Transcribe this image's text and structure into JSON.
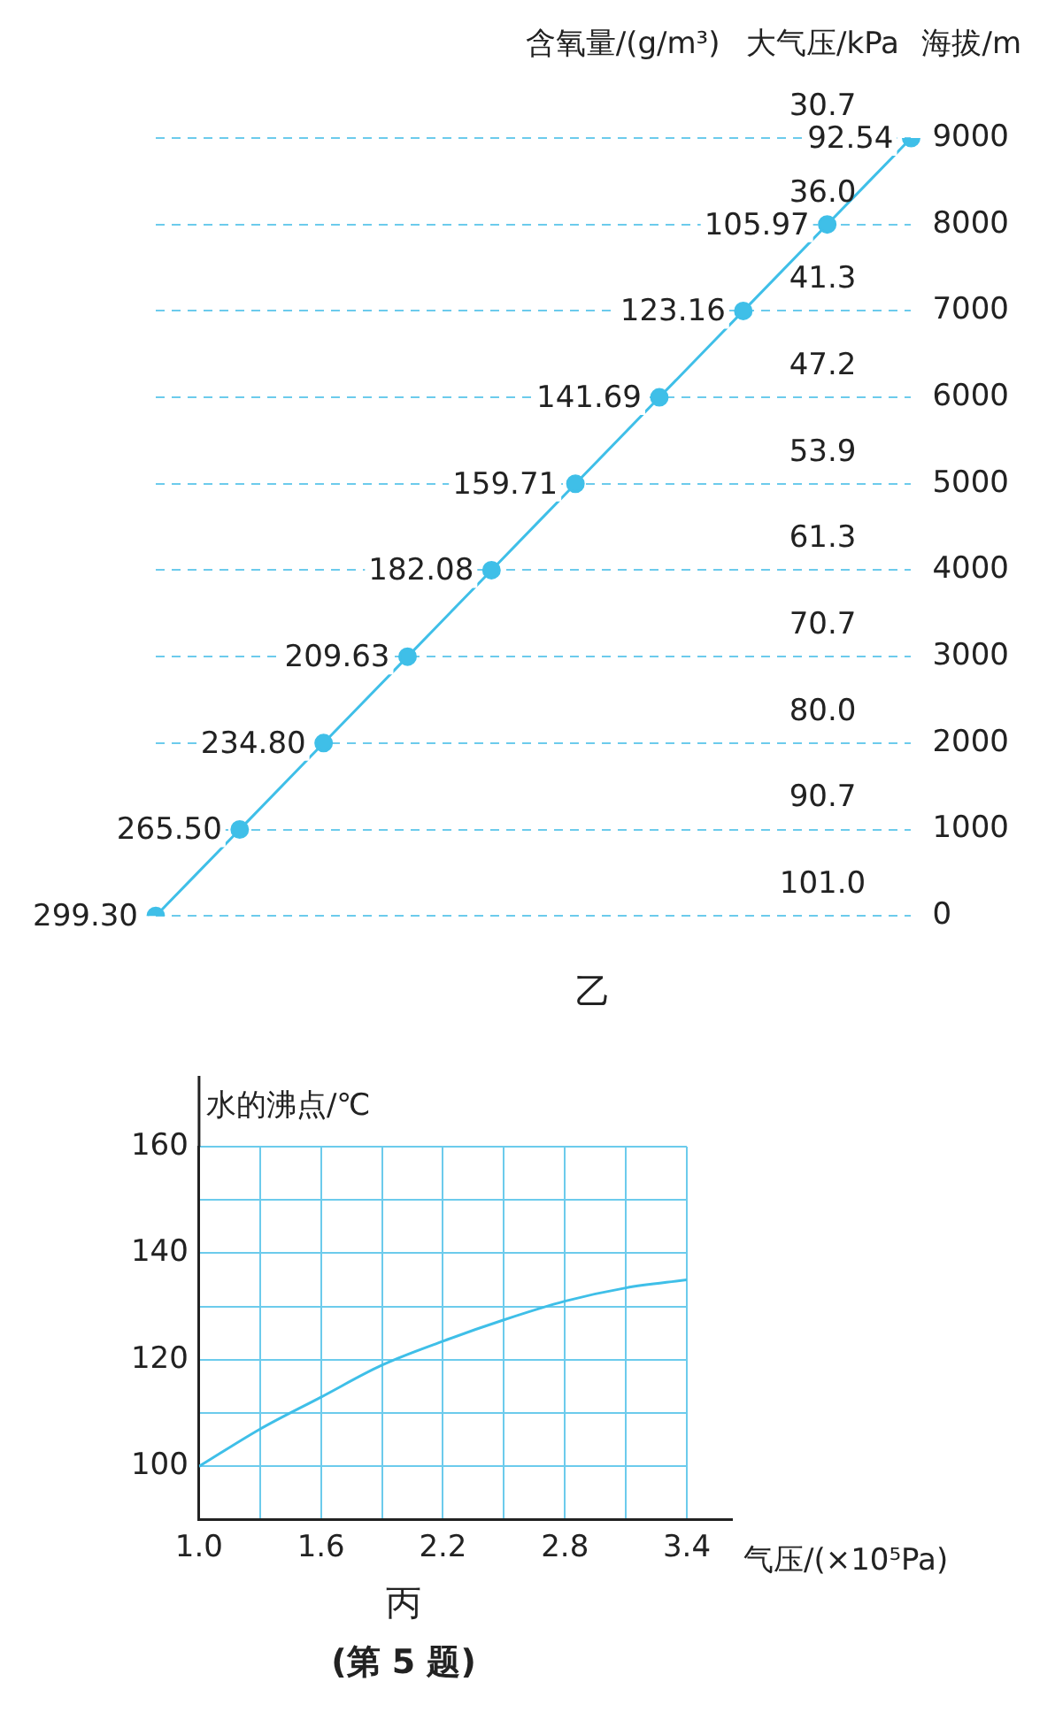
{
  "chart_data": [
    {
      "type": "line",
      "title": "乙",
      "xlabel": "含氧量/(g/m³)",
      "ylabel": "海拔/m",
      "annotations": [
        "大气压/kPa",
        "30.7",
        "36.0",
        "41.3",
        "47.2",
        "53.9",
        "61.3",
        "70.7",
        "80.0",
        "90.7",
        "101.0",
        "299.30",
        "265.50",
        "234.80",
        "209.63",
        "182.08",
        "159.71",
        "141.69",
        "123.16",
        "105.97",
        "92.54"
      ],
      "categories": [
        null,
        null,
        null,
        null,
        null,
        null,
        null,
        null,
        null,
        null
      ],
      "series": [
        {
          "color": "#3fbfe8",
          "values": [
            0,
            1000,
            2000,
            3000,
            4000,
            5000,
            6000,
            7000,
            8000,
            9000
          ]
        }
      ],
      "ylim": [
        0,
        9000
      ],
      "yticks": [
        0,
        1000,
        2000,
        3000,
        4000,
        5000,
        6000,
        7000,
        8000,
        9000
      ],
      "grid": "y",
      "marker": "circle",
      "line_style": "solid"
    },
    {
      "type": "line",
      "title": "丙",
      "subtitle": "(第 5 题)",
      "xlabel": "气压/(×10⁵Pa)",
      "ylabel": "水的沸点/℃",
      "x": [
        1.0,
        1.3,
        1.6,
        1.9,
        2.2,
        2.5,
        2.8,
        3.1,
        3.4
      ],
      "series": [
        {
          "color": "#3fbfe8",
          "values": [
            100,
            107,
            113,
            119,
            123.5,
            127.5,
            131,
            133.5,
            135
          ]
        }
      ],
      "xlim": [
        1.0,
        3.4
      ],
      "xticks": [
        {
          "value": 1.0,
          "label": "1.0"
        },
        {
          "value": 1.3,
          "label": null
        },
        1.6,
        {
          "value": 1.9,
          "label": null
        },
        2.2,
        {
          "value": 2.5,
          "label": null
        },
        2.8,
        {
          "value": 3.1,
          "label": null
        },
        3.4
      ],
      "ylim": [
        90,
        160
      ],
      "yticks": [
        {
          "value": 90,
          "label": null
        },
        100,
        {
          "value": 110,
          "label": null
        },
        120,
        {
          "value": 130,
          "label": null
        },
        140,
        {
          "value": 150,
          "label": null
        },
        160
      ],
      "grid": true,
      "marker": "none"
    }
  ]
}
